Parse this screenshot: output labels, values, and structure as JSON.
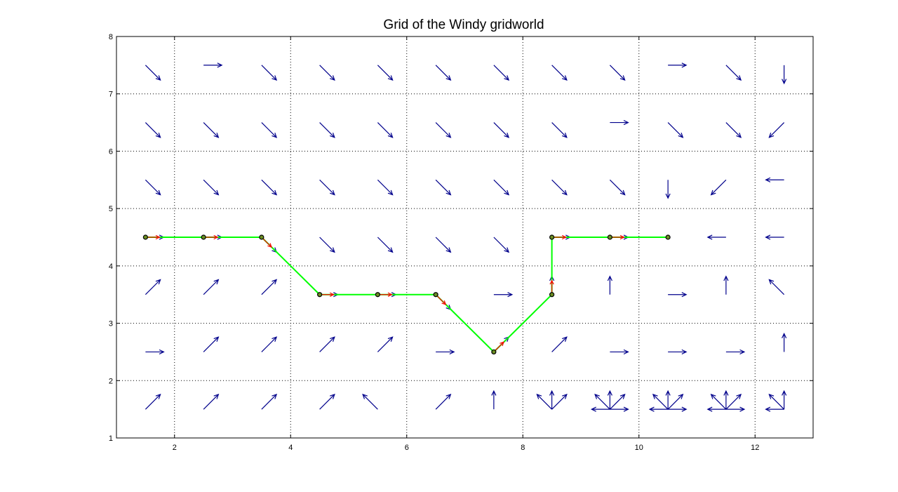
{
  "chart_data": {
    "type": "quiver",
    "title": "Grid of the Windy gridworld",
    "xlim": [
      1,
      13
    ],
    "ylim": [
      1,
      8
    ],
    "xticks": [
      2,
      4,
      6,
      8,
      10,
      12
    ],
    "yticks": [
      1,
      2,
      3,
      4,
      5,
      6,
      7,
      8
    ],
    "grid": true,
    "colors": {
      "policy": "#00008b",
      "path_line": "#00ff00",
      "path_arrow": "#ff0000",
      "marker_fill": "#6b8e23"
    },
    "policy_arrows": [
      {
        "x": 1.5,
        "y": 7.5,
        "dirs": [
          "SE"
        ]
      },
      {
        "x": 2.5,
        "y": 7.5,
        "dirs": [
          "E"
        ]
      },
      {
        "x": 3.5,
        "y": 7.5,
        "dirs": [
          "SE"
        ]
      },
      {
        "x": 4.5,
        "y": 7.5,
        "dirs": [
          "SE"
        ]
      },
      {
        "x": 5.5,
        "y": 7.5,
        "dirs": [
          "SE"
        ]
      },
      {
        "x": 6.5,
        "y": 7.5,
        "dirs": [
          "SE"
        ]
      },
      {
        "x": 7.5,
        "y": 7.5,
        "dirs": [
          "SE"
        ]
      },
      {
        "x": 8.5,
        "y": 7.5,
        "dirs": [
          "SE"
        ]
      },
      {
        "x": 9.5,
        "y": 7.5,
        "dirs": [
          "SE"
        ]
      },
      {
        "x": 10.5,
        "y": 7.5,
        "dirs": [
          "E"
        ]
      },
      {
        "x": 11.5,
        "y": 7.5,
        "dirs": [
          "SE"
        ]
      },
      {
        "x": 12.5,
        "y": 7.5,
        "dirs": [
          "S"
        ]
      },
      {
        "x": 1.5,
        "y": 6.5,
        "dirs": [
          "SE"
        ]
      },
      {
        "x": 2.5,
        "y": 6.5,
        "dirs": [
          "SE"
        ]
      },
      {
        "x": 3.5,
        "y": 6.5,
        "dirs": [
          "SE"
        ]
      },
      {
        "x": 4.5,
        "y": 6.5,
        "dirs": [
          "SE"
        ]
      },
      {
        "x": 5.5,
        "y": 6.5,
        "dirs": [
          "SE"
        ]
      },
      {
        "x": 6.5,
        "y": 6.5,
        "dirs": [
          "SE"
        ]
      },
      {
        "x": 7.5,
        "y": 6.5,
        "dirs": [
          "SE"
        ]
      },
      {
        "x": 8.5,
        "y": 6.5,
        "dirs": [
          "SE"
        ]
      },
      {
        "x": 9.5,
        "y": 6.5,
        "dirs": [
          "E"
        ]
      },
      {
        "x": 10.5,
        "y": 6.5,
        "dirs": [
          "SE"
        ]
      },
      {
        "x": 11.5,
        "y": 6.5,
        "dirs": [
          "SE"
        ]
      },
      {
        "x": 12.5,
        "y": 6.5,
        "dirs": [
          "SW"
        ]
      },
      {
        "x": 1.5,
        "y": 5.5,
        "dirs": [
          "SE"
        ]
      },
      {
        "x": 2.5,
        "y": 5.5,
        "dirs": [
          "SE"
        ]
      },
      {
        "x": 3.5,
        "y": 5.5,
        "dirs": [
          "SE"
        ]
      },
      {
        "x": 4.5,
        "y": 5.5,
        "dirs": [
          "SE"
        ]
      },
      {
        "x": 5.5,
        "y": 5.5,
        "dirs": [
          "SE"
        ]
      },
      {
        "x": 6.5,
        "y": 5.5,
        "dirs": [
          "SE"
        ]
      },
      {
        "x": 7.5,
        "y": 5.5,
        "dirs": [
          "SE"
        ]
      },
      {
        "x": 8.5,
        "y": 5.5,
        "dirs": [
          "SE"
        ]
      },
      {
        "x": 9.5,
        "y": 5.5,
        "dirs": [
          "SE"
        ]
      },
      {
        "x": 10.5,
        "y": 5.5,
        "dirs": [
          "S"
        ]
      },
      {
        "x": 11.5,
        "y": 5.5,
        "dirs": [
          "SW"
        ]
      },
      {
        "x": 12.5,
        "y": 5.5,
        "dirs": [
          "W"
        ]
      },
      {
        "x": 1.5,
        "y": 4.5,
        "dirs": [
          "E"
        ]
      },
      {
        "x": 2.5,
        "y": 4.5,
        "dirs": [
          "E"
        ]
      },
      {
        "x": 3.5,
        "y": 4.5,
        "dirs": [
          "SE"
        ]
      },
      {
        "x": 4.5,
        "y": 4.5,
        "dirs": [
          "SE"
        ]
      },
      {
        "x": 5.5,
        "y": 4.5,
        "dirs": [
          "SE"
        ]
      },
      {
        "x": 6.5,
        "y": 4.5,
        "dirs": [
          "SE"
        ]
      },
      {
        "x": 7.5,
        "y": 4.5,
        "dirs": [
          "SE"
        ]
      },
      {
        "x": 8.5,
        "y": 4.5,
        "dirs": [
          "E"
        ]
      },
      {
        "x": 9.5,
        "y": 4.5,
        "dirs": [
          "E"
        ]
      },
      {
        "x": 11.5,
        "y": 4.5,
        "dirs": [
          "W"
        ]
      },
      {
        "x": 12.5,
        "y": 4.5,
        "dirs": [
          "W"
        ]
      },
      {
        "x": 1.5,
        "y": 3.5,
        "dirs": [
          "NE"
        ]
      },
      {
        "x": 2.5,
        "y": 3.5,
        "dirs": [
          "NE"
        ]
      },
      {
        "x": 3.5,
        "y": 3.5,
        "dirs": [
          "NE"
        ]
      },
      {
        "x": 4.5,
        "y": 3.5,
        "dirs": [
          "E"
        ]
      },
      {
        "x": 5.5,
        "y": 3.5,
        "dirs": [
          "E"
        ]
      },
      {
        "x": 6.5,
        "y": 3.5,
        "dirs": [
          "SE"
        ]
      },
      {
        "x": 7.5,
        "y": 3.5,
        "dirs": [
          "E"
        ]
      },
      {
        "x": 8.5,
        "y": 3.5,
        "dirs": [
          "N"
        ]
      },
      {
        "x": 9.5,
        "y": 3.5,
        "dirs": [
          "N"
        ]
      },
      {
        "x": 10.5,
        "y": 3.5,
        "dirs": [
          "E"
        ]
      },
      {
        "x": 11.5,
        "y": 3.5,
        "dirs": [
          "N"
        ]
      },
      {
        "x": 12.5,
        "y": 3.5,
        "dirs": [
          "NW"
        ]
      },
      {
        "x": 1.5,
        "y": 2.5,
        "dirs": [
          "E"
        ]
      },
      {
        "x": 2.5,
        "y": 2.5,
        "dirs": [
          "NE"
        ]
      },
      {
        "x": 3.5,
        "y": 2.5,
        "dirs": [
          "NE"
        ]
      },
      {
        "x": 4.5,
        "y": 2.5,
        "dirs": [
          "NE"
        ]
      },
      {
        "x": 5.5,
        "y": 2.5,
        "dirs": [
          "NE"
        ]
      },
      {
        "x": 6.5,
        "y": 2.5,
        "dirs": [
          "E"
        ]
      },
      {
        "x": 7.5,
        "y": 2.5,
        "dirs": [
          "NE"
        ]
      },
      {
        "x": 8.5,
        "y": 2.5,
        "dirs": [
          "NE"
        ]
      },
      {
        "x": 9.5,
        "y": 2.5,
        "dirs": [
          "E"
        ]
      },
      {
        "x": 10.5,
        "y": 2.5,
        "dirs": [
          "E"
        ]
      },
      {
        "x": 11.5,
        "y": 2.5,
        "dirs": [
          "E"
        ]
      },
      {
        "x": 12.5,
        "y": 2.5,
        "dirs": [
          "N"
        ]
      },
      {
        "x": 1.5,
        "y": 1.5,
        "dirs": [
          "NE"
        ]
      },
      {
        "x": 2.5,
        "y": 1.5,
        "dirs": [
          "NE"
        ]
      },
      {
        "x": 3.5,
        "y": 1.5,
        "dirs": [
          "NE"
        ]
      },
      {
        "x": 4.5,
        "y": 1.5,
        "dirs": [
          "NE"
        ]
      },
      {
        "x": 5.5,
        "y": 1.5,
        "dirs": [
          "NW"
        ]
      },
      {
        "x": 6.5,
        "y": 1.5,
        "dirs": [
          "NE"
        ]
      },
      {
        "x": 7.5,
        "y": 1.5,
        "dirs": [
          "N"
        ]
      },
      {
        "x": 8.5,
        "y": 1.5,
        "dirs": [
          "NW",
          "N",
          "NE"
        ]
      },
      {
        "x": 9.5,
        "y": 1.5,
        "dirs": [
          "W",
          "NW",
          "N",
          "NE",
          "E"
        ]
      },
      {
        "x": 10.5,
        "y": 1.5,
        "dirs": [
          "W",
          "NW",
          "N",
          "NE",
          "E"
        ]
      },
      {
        "x": 11.5,
        "y": 1.5,
        "dirs": [
          "W",
          "NW",
          "N",
          "NE",
          "E"
        ]
      },
      {
        "x": 12.5,
        "y": 1.5,
        "dirs": [
          "W",
          "NW",
          "N"
        ]
      }
    ],
    "path": [
      {
        "x": 1.5,
        "y": 4.5
      },
      {
        "x": 2.5,
        "y": 4.5
      },
      {
        "x": 3.5,
        "y": 4.5
      },
      {
        "x": 4.5,
        "y": 3.5
      },
      {
        "x": 5.5,
        "y": 3.5
      },
      {
        "x": 6.5,
        "y": 3.5
      },
      {
        "x": 7.5,
        "y": 2.5
      },
      {
        "x": 8.5,
        "y": 3.5
      },
      {
        "x": 8.5,
        "y": 4.5
      },
      {
        "x": 9.5,
        "y": 4.5
      },
      {
        "x": 10.5,
        "y": 4.5
      }
    ],
    "path_arrows": [
      {
        "x": 1.5,
        "y": 4.5,
        "dir": "E"
      },
      {
        "x": 2.5,
        "y": 4.5,
        "dir": "E"
      },
      {
        "x": 3.5,
        "y": 4.5,
        "dir": "SE"
      },
      {
        "x": 4.5,
        "y": 3.5,
        "dir": "E"
      },
      {
        "x": 5.5,
        "y": 3.5,
        "dir": "E"
      },
      {
        "x": 6.5,
        "y": 3.5,
        "dir": "SE"
      },
      {
        "x": 7.5,
        "y": 2.5,
        "dir": "NE"
      },
      {
        "x": 8.5,
        "y": 3.5,
        "dir": "N"
      },
      {
        "x": 8.5,
        "y": 4.5,
        "dir": "E"
      },
      {
        "x": 9.5,
        "y": 4.5,
        "dir": "E"
      }
    ]
  }
}
